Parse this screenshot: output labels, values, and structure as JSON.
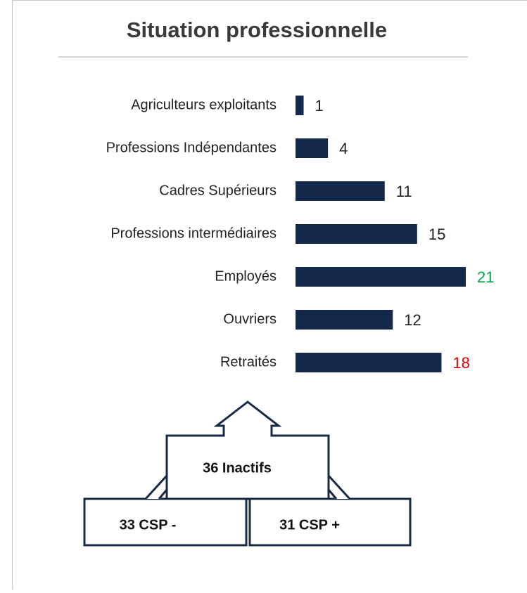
{
  "chart_data": {
    "type": "bar",
    "orientation": "horizontal",
    "title": "Situation professionnelle",
    "categories": [
      "Agriculteurs exploitants",
      "Professions Indépendantes",
      "Cadres Supérieurs",
      "Professions intermédiaires",
      "Employés",
      "Ouvriers",
      "Retraités"
    ],
    "values": [
      1,
      4,
      11,
      15,
      21,
      12,
      18
    ],
    "color": "#14284b",
    "value_label_colors": [
      "#222222",
      "#222222",
      "#222222",
      "#222222",
      "#00a64f",
      "#222222",
      "#e00000"
    ],
    "annotations": [
      "36 Inactifs",
      "33 CSP -",
      "31 CSP +"
    ]
  }
}
